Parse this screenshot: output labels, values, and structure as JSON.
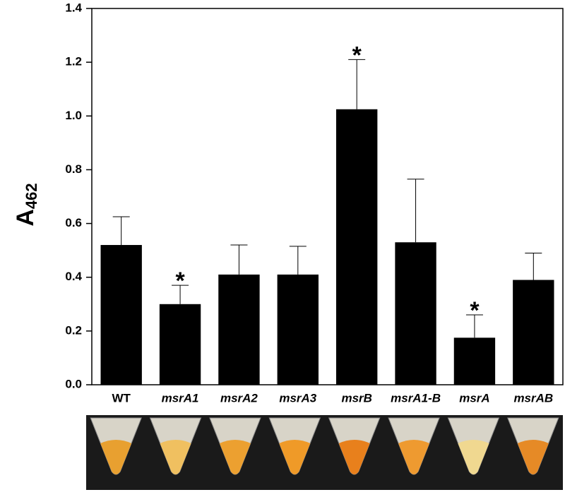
{
  "chart_data": {
    "type": "bar",
    "y_label": {
      "main": "A",
      "subscript": "462"
    },
    "categories": [
      "WT",
      "msrA1",
      "msrA2",
      "msrA3",
      "msrB",
      "msrA1-B",
      "msrA",
      "msrAB"
    ],
    "category_style": [
      "normal",
      "italic",
      "italic",
      "italic",
      "italic",
      "italic",
      "italic",
      "italic"
    ],
    "values": [
      0.52,
      0.3,
      0.41,
      0.41,
      1.025,
      0.53,
      0.175,
      0.39
    ],
    "errors": [
      0.105,
      0.07,
      0.11,
      0.105,
      0.185,
      0.235,
      0.085,
      0.1
    ],
    "color": "#000000",
    "annotations": [
      {
        "text": "*",
        "category": "msrA1"
      },
      {
        "text": "*",
        "category": "msrB"
      },
      {
        "text": "*",
        "category": "msrA"
      }
    ],
    "ylim": [
      0,
      1.4
    ],
    "yticks": [
      {
        "value": 0,
        "label": "0.0"
      },
      0.2,
      0.4,
      0.6,
      0.8,
      {
        "value": 1,
        "label": "1.0"
      },
      1.2,
      1.4
    ],
    "grid": false
  }
}
